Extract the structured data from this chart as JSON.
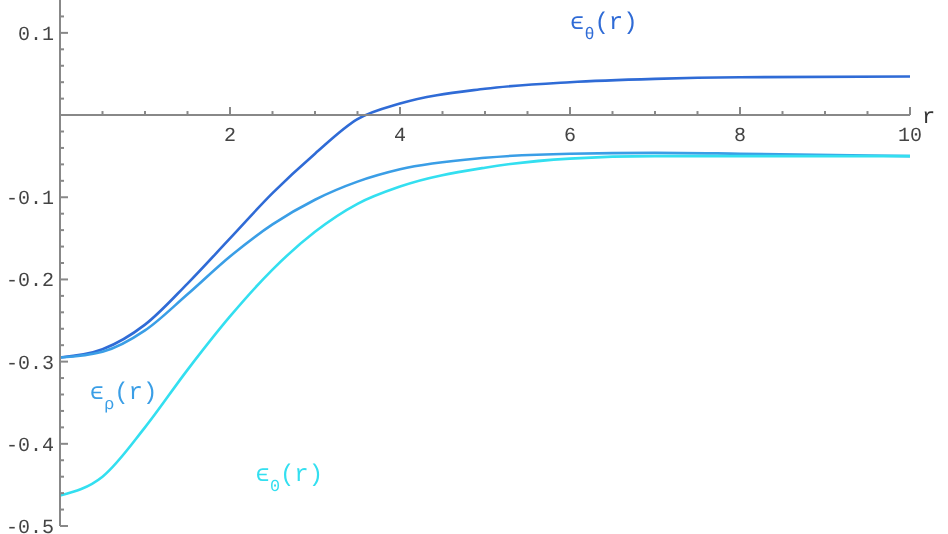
{
  "chart_data": {
    "type": "line",
    "xlabel": "r",
    "xlim": [
      0,
      10
    ],
    "ylim": [
      -0.5,
      0.14
    ],
    "x": [
      0,
      0.5,
      1,
      1.5,
      2,
      2.5,
      3,
      3.5,
      4,
      5,
      6,
      7,
      8,
      10
    ],
    "xticks": [
      {
        "value": 0.5,
        "label": null
      },
      {
        "value": 1,
        "label": null
      },
      {
        "value": 1.5,
        "label": null
      },
      2,
      {
        "value": 2.5,
        "label": null
      },
      {
        "value": 3,
        "label": null
      },
      {
        "value": 3.5,
        "label": null
      },
      4,
      {
        "value": 4.5,
        "label": null
      },
      {
        "value": 5,
        "label": null
      },
      {
        "value": 5.5,
        "label": null
      },
      6,
      {
        "value": 6.5,
        "label": null
      },
      {
        "value": 7,
        "label": null
      },
      {
        "value": 7.5,
        "label": null
      },
      8,
      {
        "value": 8.5,
        "label": null
      },
      {
        "value": 9,
        "label": null
      },
      {
        "value": 9.5,
        "label": null
      },
      10
    ],
    "yticks": [
      -0.5,
      {
        "value": -0.48,
        "label": null
      },
      {
        "value": -0.46,
        "label": null
      },
      {
        "value": -0.44,
        "label": null
      },
      {
        "value": -0.42,
        "label": null
      },
      -0.4,
      {
        "value": -0.38,
        "label": null
      },
      {
        "value": -0.36,
        "label": null
      },
      {
        "value": -0.34,
        "label": null
      },
      {
        "value": -0.32,
        "label": null
      },
      -0.3,
      {
        "value": -0.28,
        "label": null
      },
      {
        "value": -0.26,
        "label": null
      },
      {
        "value": -0.24,
        "label": null
      },
      {
        "value": -0.22,
        "label": null
      },
      -0.2,
      {
        "value": -0.18,
        "label": null
      },
      {
        "value": -0.16,
        "label": null
      },
      {
        "value": -0.14,
        "label": null
      },
      {
        "value": -0.12,
        "label": null
      },
      -0.1,
      {
        "value": -0.08,
        "label": null
      },
      {
        "value": -0.06,
        "label": null
      },
      {
        "value": -0.04,
        "label": null
      },
      {
        "value": -0.02,
        "label": null
      },
      {
        "value": 0.02,
        "label": null
      },
      {
        "value": 0.04,
        "label": null
      },
      {
        "value": 0.06,
        "label": null
      },
      {
        "value": 0.08,
        "label": null
      },
      0.1,
      {
        "value": 0.12,
        "label": null
      }
    ],
    "series": [
      {
        "name": "ϵ$_{θ}$(r)",
        "color": "#2f6bd6",
        "values": [
          -0.295,
          -0.285,
          -0.255,
          -0.205,
          -0.15,
          -0.095,
          -0.047,
          -0.005,
          0.014,
          0.032,
          0.04,
          0.044,
          0.046,
          0.047
        ]
      },
      {
        "name": "ϵ$_{ρ}$(r)",
        "color": "#3a9ee6",
        "values": [
          -0.295,
          -0.288,
          -0.262,
          -0.218,
          -0.172,
          -0.133,
          -0.103,
          -0.081,
          -0.066,
          -0.052,
          -0.047,
          -0.046,
          -0.047,
          -0.05
        ]
      },
      {
        "name": "ϵ$_{0}$(r)",
        "color": "#33dff0",
        "values": [
          -0.463,
          -0.44,
          -0.38,
          -0.31,
          -0.245,
          -0.188,
          -0.142,
          -0.108,
          -0.087,
          -0.064,
          -0.053,
          -0.05,
          -0.05,
          -0.05
        ]
      }
    ]
  }
}
